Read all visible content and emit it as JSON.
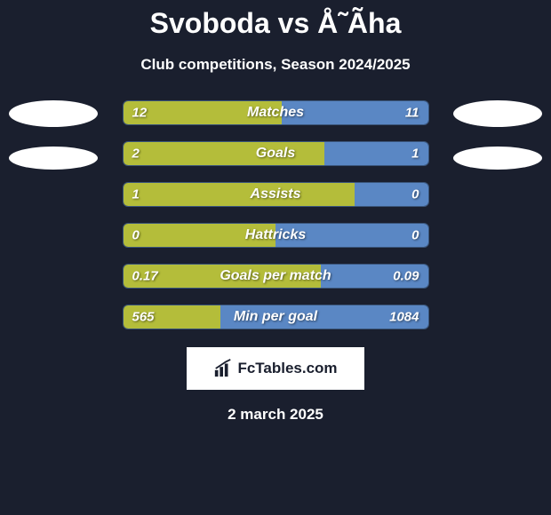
{
  "title": "Svoboda vs Å˜Ãha",
  "subtitle": "Club competitions, Season 2024/2025",
  "date": "2 march 2025",
  "brand": "FcTables.com",
  "colors": {
    "background": "#1a1f2e",
    "left_bar": "#b4bd3a",
    "right_bar": "#5a87c4",
    "border": "#3a557a",
    "text": "#ffffff",
    "brand_bg": "#ffffff",
    "brand_text": "#1a1f2e"
  },
  "stats": [
    {
      "label": "Matches",
      "left_value": "12",
      "right_value": "11",
      "left_pct": 52,
      "right_pct": 48
    },
    {
      "label": "Goals",
      "left_value": "2",
      "right_value": "1",
      "left_pct": 66,
      "right_pct": 34
    },
    {
      "label": "Assists",
      "left_value": "1",
      "right_value": "0",
      "left_pct": 76,
      "right_pct": 24
    },
    {
      "label": "Hattricks",
      "left_value": "0",
      "right_value": "0",
      "left_pct": 50,
      "right_pct": 50
    },
    {
      "label": "Goals per match",
      "left_value": "0.17",
      "right_value": "0.09",
      "left_pct": 65,
      "right_pct": 35
    },
    {
      "label": "Min per goal",
      "left_value": "565",
      "right_value": "1084",
      "left_pct": 32,
      "right_pct": 68
    }
  ]
}
